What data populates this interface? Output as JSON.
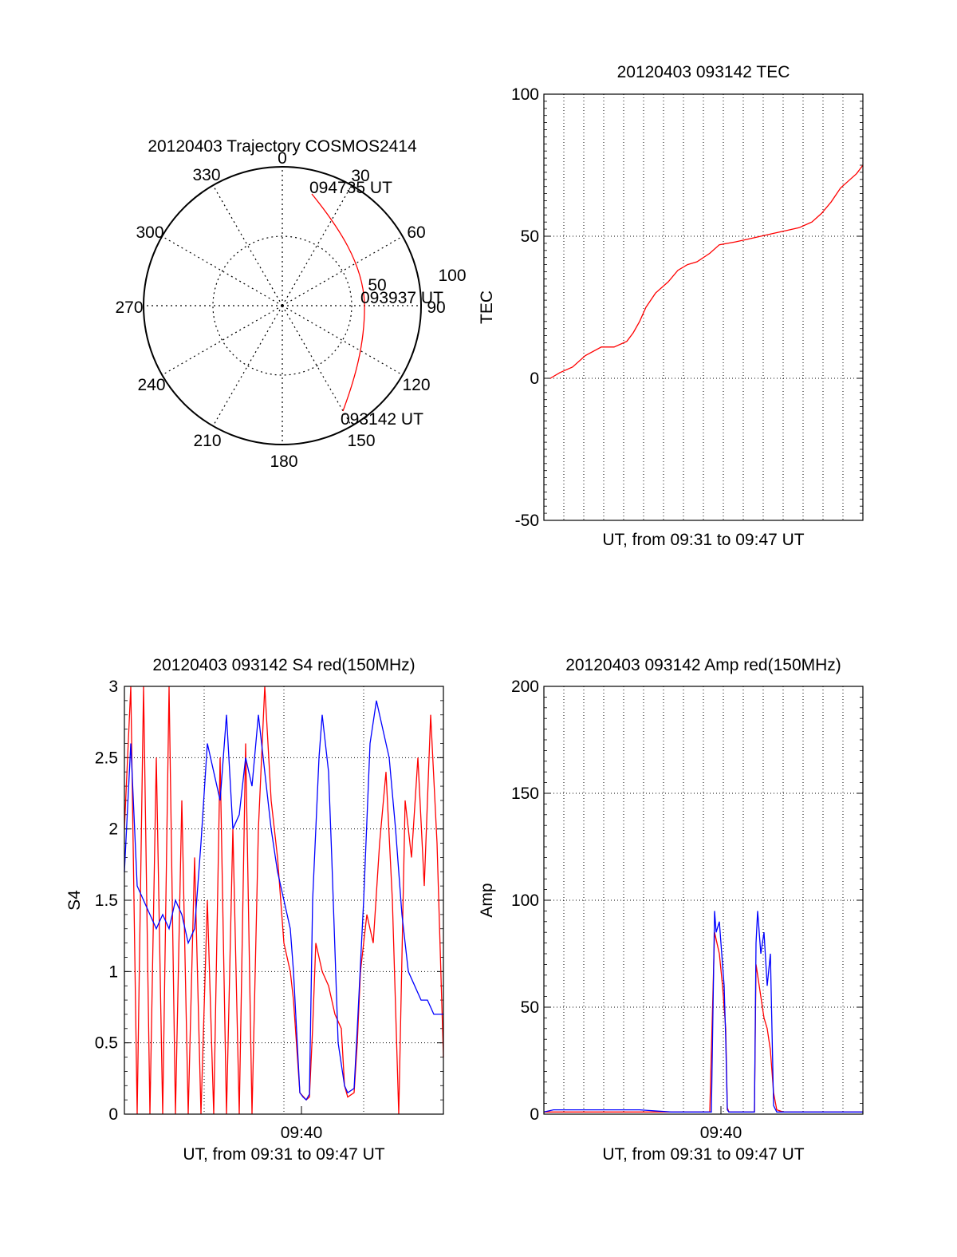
{
  "colors": {
    "red": "#ff0000",
    "blue": "#0000ff",
    "axis": "#000000"
  },
  "polar": {
    "title": "20120403 Trajectory COSMOS2414",
    "azimuth_labels": [
      "0",
      "30",
      "60",
      "90",
      "120",
      "150",
      "180",
      "210",
      "240",
      "270",
      "300",
      "330"
    ],
    "ring_labels": [
      "50",
      "100"
    ],
    "time_labels": [
      "094735 UT",
      "093937 UT",
      "093142 UT"
    ]
  },
  "chart_data": [
    {
      "id": "tec",
      "type": "line",
      "title": "20120403 093142 TEC",
      "xlabel": "UT, from 09:31 to 09:47 UT",
      "ylabel": "TEC",
      "ylim": [
        -50,
        100
      ],
      "yticks": [
        "100",
        "50",
        "0",
        "-50"
      ],
      "xtick_labels": [],
      "grid": true,
      "series": [
        {
          "color": "red",
          "points": [
            [
              0.02,
              0
            ],
            [
              0.05,
              2
            ],
            [
              0.09,
              4
            ],
            [
              0.13,
              8
            ],
            [
              0.18,
              11
            ],
            [
              0.22,
              11
            ],
            [
              0.26,
              13
            ],
            [
              0.28,
              16
            ],
            [
              0.3,
              20
            ],
            [
              0.32,
              25
            ],
            [
              0.35,
              30
            ],
            [
              0.39,
              34
            ],
            [
              0.42,
              38
            ],
            [
              0.45,
              40
            ],
            [
              0.48,
              41
            ],
            [
              0.52,
              44
            ],
            [
              0.55,
              47
            ],
            [
              0.6,
              48
            ],
            [
              0.64,
              49
            ],
            [
              0.68,
              50
            ],
            [
              0.72,
              51
            ],
            [
              0.76,
              52
            ],
            [
              0.8,
              53
            ],
            [
              0.84,
              55
            ],
            [
              0.87,
              58
            ],
            [
              0.9,
              62
            ],
            [
              0.93,
              67
            ],
            [
              0.96,
              70
            ],
            [
              0.98,
              72
            ],
            [
              1.0,
              75
            ]
          ]
        }
      ]
    },
    {
      "id": "s4",
      "type": "line",
      "title": "20120403 093142 S4 red(150MHz)",
      "xlabel": "UT, from 09:31 to 09:47 UT",
      "ylabel": "S4",
      "ylim": [
        0,
        3
      ],
      "yticks": [
        "3",
        "2.5",
        "2",
        "1.5",
        "1",
        "0.5",
        "0"
      ],
      "xtick_labels": [
        "09:40"
      ],
      "grid": true,
      "series": [
        {
          "color": "red",
          "points": [
            [
              0.0,
              2.0
            ],
            [
              0.02,
              3.0
            ],
            [
              0.04,
              0.0
            ],
            [
              0.06,
              3.0
            ],
            [
              0.08,
              0.0
            ],
            [
              0.1,
              2.5
            ],
            [
              0.12,
              0.0
            ],
            [
              0.14,
              3.0
            ],
            [
              0.16,
              0.0
            ],
            [
              0.18,
              2.2
            ],
            [
              0.2,
              0.0
            ],
            [
              0.22,
              1.8
            ],
            [
              0.24,
              0.0
            ],
            [
              0.26,
              1.5
            ],
            [
              0.28,
              0.0
            ],
            [
              0.3,
              2.5
            ],
            [
              0.32,
              0.0
            ],
            [
              0.34,
              2.0
            ],
            [
              0.36,
              0.0
            ],
            [
              0.38,
              2.6
            ],
            [
              0.4,
              0.0
            ],
            [
              0.42,
              2.0
            ],
            [
              0.44,
              3.0
            ],
            [
              0.46,
              2.2
            ],
            [
              0.48,
              1.8
            ],
            [
              0.5,
              1.2
            ],
            [
              0.52,
              1.0
            ],
            [
              0.53,
              0.8
            ],
            [
              0.55,
              0.15
            ],
            [
              0.57,
              0.1
            ],
            [
              0.58,
              0.12
            ],
            [
              0.59,
              0.6
            ],
            [
              0.6,
              1.2
            ],
            [
              0.62,
              1.0
            ],
            [
              0.64,
              0.9
            ],
            [
              0.66,
              0.7
            ],
            [
              0.68,
              0.6
            ],
            [
              0.69,
              0.2
            ],
            [
              0.7,
              0.12
            ],
            [
              0.72,
              0.15
            ],
            [
              0.73,
              0.5
            ],
            [
              0.74,
              1.0
            ],
            [
              0.76,
              1.4
            ],
            [
              0.78,
              1.2
            ],
            [
              0.8,
              1.9
            ],
            [
              0.82,
              2.4
            ],
            [
              0.84,
              1.5
            ],
            [
              0.86,
              0.0
            ],
            [
              0.88,
              2.2
            ],
            [
              0.9,
              1.8
            ],
            [
              0.92,
              2.5
            ],
            [
              0.94,
              1.6
            ],
            [
              0.96,
              2.8
            ],
            [
              0.98,
              1.9
            ],
            [
              1.0,
              0.4
            ]
          ]
        },
        {
          "color": "blue",
          "points": [
            [
              0.0,
              1.7
            ],
            [
              0.02,
              2.6
            ],
            [
              0.04,
              1.6
            ],
            [
              0.06,
              1.5
            ],
            [
              0.08,
              1.4
            ],
            [
              0.1,
              1.3
            ],
            [
              0.12,
              1.4
            ],
            [
              0.14,
              1.3
            ],
            [
              0.16,
              1.5
            ],
            [
              0.18,
              1.4
            ],
            [
              0.2,
              1.2
            ],
            [
              0.22,
              1.3
            ],
            [
              0.24,
              1.9
            ],
            [
              0.26,
              2.6
            ],
            [
              0.28,
              2.4
            ],
            [
              0.3,
              2.2
            ],
            [
              0.32,
              2.8
            ],
            [
              0.34,
              2.0
            ],
            [
              0.36,
              2.1
            ],
            [
              0.38,
              2.5
            ],
            [
              0.4,
              2.3
            ],
            [
              0.42,
              2.8
            ],
            [
              0.44,
              2.4
            ],
            [
              0.46,
              2.0
            ],
            [
              0.48,
              1.7
            ],
            [
              0.5,
              1.5
            ],
            [
              0.52,
              1.3
            ],
            [
              0.53,
              1.0
            ],
            [
              0.55,
              0.15
            ],
            [
              0.56,
              0.12
            ],
            [
              0.57,
              0.1
            ],
            [
              0.58,
              0.14
            ],
            [
              0.59,
              1.5
            ],
            [
              0.61,
              2.5
            ],
            [
              0.62,
              2.8
            ],
            [
              0.64,
              2.4
            ],
            [
              0.65,
              1.8
            ],
            [
              0.67,
              0.5
            ],
            [
              0.69,
              0.2
            ],
            [
              0.7,
              0.15
            ],
            [
              0.72,
              0.18
            ],
            [
              0.73,
              0.6
            ],
            [
              0.75,
              1.5
            ],
            [
              0.77,
              2.6
            ],
            [
              0.79,
              2.9
            ],
            [
              0.81,
              2.7
            ],
            [
              0.83,
              2.5
            ],
            [
              0.85,
              2.0
            ],
            [
              0.87,
              1.4
            ],
            [
              0.89,
              1.0
            ],
            [
              0.91,
              0.9
            ],
            [
              0.93,
              0.8
            ],
            [
              0.95,
              0.8
            ],
            [
              0.97,
              0.7
            ],
            [
              0.99,
              0.7
            ],
            [
              1.0,
              0.7
            ]
          ]
        }
      ]
    },
    {
      "id": "amp",
      "type": "line",
      "title": "20120403 093142 Amp red(150MHz)",
      "xlabel": "UT, from 09:31 to 09:47 UT",
      "ylabel": "Amp",
      "ylim": [
        0,
        200
      ],
      "yticks": [
        "200",
        "150",
        "100",
        "50",
        "0"
      ],
      "xtick_labels": [
        "09:40"
      ],
      "grid": true,
      "series": [
        {
          "color": "red",
          "points": [
            [
              0.0,
              1
            ],
            [
              0.5,
              1
            ],
            [
              0.52,
              1
            ],
            [
              0.535,
              85
            ],
            [
              0.55,
              75
            ],
            [
              0.56,
              60
            ],
            [
              0.57,
              40
            ],
            [
              0.575,
              3
            ],
            [
              0.58,
              1
            ],
            [
              0.66,
              1
            ],
            [
              0.665,
              70
            ],
            [
              0.68,
              55
            ],
            [
              0.69,
              45
            ],
            [
              0.7,
              40
            ],
            [
              0.71,
              30
            ],
            [
              0.72,
              10
            ],
            [
              0.73,
              2
            ],
            [
              0.75,
              1
            ],
            [
              1.0,
              1
            ]
          ]
        },
        {
          "color": "blue",
          "points": [
            [
              0.0,
              1
            ],
            [
              0.03,
              2
            ],
            [
              0.1,
              2
            ],
            [
              0.2,
              2
            ],
            [
              0.3,
              2
            ],
            [
              0.4,
              1
            ],
            [
              0.5,
              1
            ],
            [
              0.525,
              1
            ],
            [
              0.535,
              95
            ],
            [
              0.54,
              85
            ],
            [
              0.55,
              90
            ],
            [
              0.56,
              70
            ],
            [
              0.565,
              60
            ],
            [
              0.57,
              35
            ],
            [
              0.575,
              2
            ],
            [
              0.58,
              1
            ],
            [
              0.66,
              1
            ],
            [
              0.665,
              80
            ],
            [
              0.67,
              95
            ],
            [
              0.68,
              75
            ],
            [
              0.69,
              85
            ],
            [
              0.7,
              60
            ],
            [
              0.71,
              75
            ],
            [
              0.72,
              4
            ],
            [
              0.73,
              1
            ],
            [
              0.8,
              1
            ],
            [
              0.9,
              1
            ],
            [
              1.0,
              1
            ]
          ]
        }
      ]
    }
  ]
}
